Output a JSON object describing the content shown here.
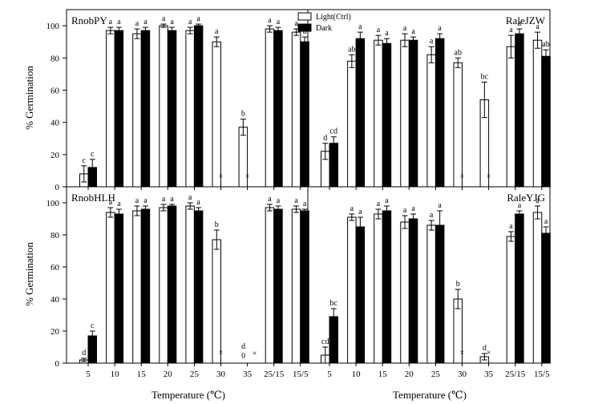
{
  "figure": {
    "ylabel": "% Germination",
    "xlabel": "Temperature (℃)"
  },
  "legend": {
    "items": [
      {
        "label": "Light(Ctrl)",
        "color": "#ffffff"
      },
      {
        "label": "Dark",
        "color": "#000000"
      }
    ]
  },
  "chart_data": [
    {
      "type": "bar",
      "title": "RnobPY",
      "categories": [
        "5",
        "10",
        "15",
        "20",
        "25",
        "30",
        "35",
        "25/15",
        "15/5"
      ],
      "ylim": [
        0,
        110
      ],
      "yticks": [
        0,
        20,
        40,
        60,
        80,
        100
      ],
      "series": [
        {
          "name": "Light(Ctrl)",
          "values": [
            8,
            97,
            95,
            100,
            97,
            90,
            37,
            98,
            96
          ],
          "errors": [
            5,
            2,
            3,
            1,
            2,
            3,
            5,
            2,
            2
          ],
          "labels": [
            "c",
            "a",
            "a",
            "a",
            "a",
            "a",
            "b",
            "a",
            "a"
          ]
        },
        {
          "name": "Dark",
          "values": [
            12,
            97,
            97,
            97,
            100,
            null,
            null,
            97,
            90
          ],
          "errors": [
            5,
            2,
            2,
            2,
            1,
            null,
            null,
            2,
            3
          ],
          "labels": [
            "c",
            "a",
            "a",
            "a",
            "a",
            "",
            "",
            "a",
            "a"
          ]
        }
      ],
      "markers": [
        {
          "category": "30",
          "text": "×"
        },
        {
          "category": "35",
          "text": "×"
        }
      ]
    },
    {
      "type": "bar",
      "title": "RaleJZW",
      "categories": [
        "5",
        "10",
        "15",
        "20",
        "25",
        "30",
        "35",
        "25/15",
        "15/5"
      ],
      "ylim": [
        0,
        110
      ],
      "yticks": [
        0,
        20,
        40,
        60,
        80,
        100
      ],
      "series": [
        {
          "name": "Light(Ctrl)",
          "values": [
            22,
            78,
            91,
            91,
            82,
            77,
            54,
            87,
            91
          ],
          "errors": [
            5,
            4,
            3,
            4,
            5,
            3,
            11,
            7,
            5
          ],
          "labels": [
            "d",
            "ab",
            "a",
            "a",
            "a",
            "ab",
            "bc",
            "a",
            "a"
          ]
        },
        {
          "name": "Dark",
          "values": [
            27,
            92,
            89,
            91,
            92,
            null,
            null,
            95,
            81
          ],
          "errors": [
            4,
            4,
            3,
            2,
            3,
            null,
            null,
            3,
            4
          ],
          "labels": [
            "cd",
            "a",
            "a",
            "a",
            "a",
            "",
            "",
            "a",
            "ab"
          ]
        }
      ],
      "markers": [
        {
          "category": "30",
          "text": "×"
        },
        {
          "category": "35",
          "text": "×"
        }
      ]
    },
    {
      "type": "bar",
      "title": "RnobHLH",
      "categories": [
        "5",
        "10",
        "15",
        "20",
        "25",
        "30",
        "35",
        "25/15",
        "15/5"
      ],
      "ylim": [
        0,
        110
      ],
      "yticks": [
        0,
        20,
        40,
        60,
        80,
        100
      ],
      "series": [
        {
          "name": "Light(Ctrl)",
          "values": [
            2,
            94,
            95,
            97,
            98,
            77,
            null,
            97,
            96
          ],
          "errors": [
            1,
            3,
            3,
            2,
            2,
            6,
            null,
            2,
            2
          ],
          "labels": [
            "d",
            "a",
            "a",
            "a",
            "a",
            "b",
            "",
            "a",
            "a"
          ]
        },
        {
          "name": "Dark",
          "values": [
            17,
            93,
            96,
            98,
            95,
            null,
            null,
            96,
            95
          ],
          "errors": [
            3,
            3,
            2,
            1,
            2,
            null,
            null,
            2,
            1
          ],
          "labels": [
            "c",
            "a",
            "a",
            "a",
            "a",
            "",
            "",
            "a",
            "a"
          ]
        }
      ],
      "markers": [
        {
          "category": "30",
          "text": "×"
        },
        {
          "category": "35",
          "text": "d"
        },
        {
          "category": "35",
          "text": "0"
        },
        {
          "category": "35",
          "text": "×"
        }
      ]
    },
    {
      "type": "bar",
      "title": "RaleYJG",
      "categories": [
        "5",
        "10",
        "15",
        "20",
        "25",
        "30",
        "35",
        "25/15",
        "15/5"
      ],
      "ylim": [
        0,
        110
      ],
      "yticks": [
        0,
        20,
        40,
        60,
        80,
        100
      ],
      "series": [
        {
          "name": "Light(Ctrl)",
          "values": [
            5,
            91,
            93,
            88,
            86,
            40,
            4,
            79,
            94
          ],
          "errors": [
            5,
            2,
            3,
            4,
            3,
            6,
            2,
            3,
            4
          ],
          "labels": [
            "cd",
            "a",
            "a",
            "a",
            "a",
            "b",
            "d",
            "a",
            "a"
          ]
        },
        {
          "name": "Dark",
          "values": [
            29,
            85,
            95,
            90,
            86,
            null,
            null,
            93,
            81
          ],
          "errors": [
            5,
            6,
            3,
            3,
            9,
            null,
            null,
            2,
            4
          ],
          "labels": [
            "bc",
            "a",
            "a",
            "a",
            "a",
            "",
            "",
            "a",
            "a"
          ]
        }
      ],
      "markers": [
        {
          "category": "30",
          "text": "×"
        },
        {
          "category": "35",
          "text": "×"
        }
      ]
    }
  ]
}
